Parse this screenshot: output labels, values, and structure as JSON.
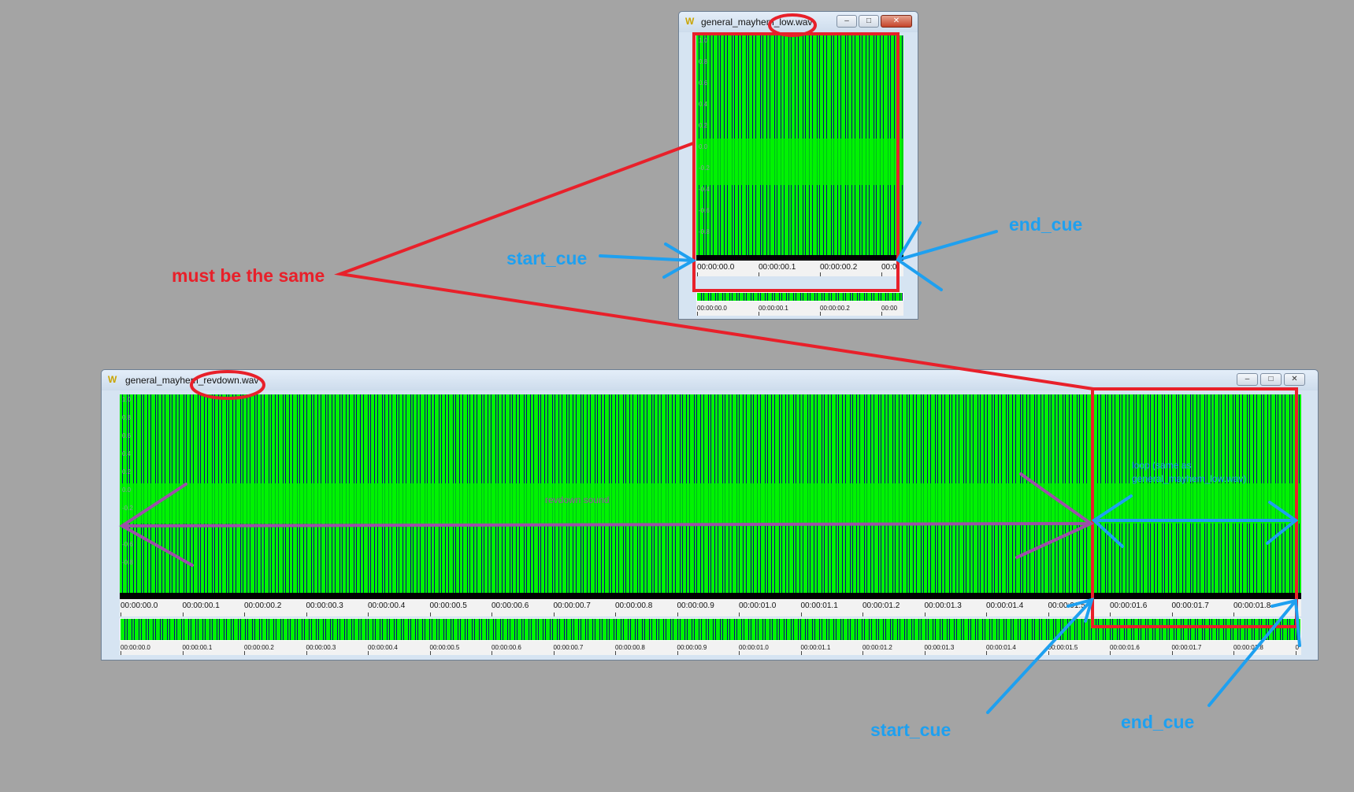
{
  "small_window": {
    "title": "general_mayhem_low.wav",
    "icon": "W",
    "controls": [
      "minimize",
      "restore",
      "close"
    ],
    "y_ticks": [
      "1.0",
      "0.8",
      "0.6",
      "0.4",
      "0.2",
      "0.0",
      "-0.2",
      "-0.4",
      "-0.6",
      "-0.8"
    ],
    "ruler_labels": [
      "00:00:00.0",
      "00:00:00.1",
      "00:00:00.2",
      "00:0"
    ],
    "overview_labels": [
      "00:00:00.0",
      "00:00:00.1",
      "00:00:00.2",
      "00:00"
    ]
  },
  "large_window": {
    "title": "general_mayhem_revdown.wav",
    "icon": "W",
    "controls": [
      "minimize",
      "restore",
      "close"
    ],
    "y_ticks": [
      "1.0",
      "0.8",
      "0.6",
      "0.4",
      "0.2",
      "0.0",
      "-0.2",
      "-0.4",
      "-0.6",
      "-0.8"
    ],
    "ruler_labels": [
      "00:00:00.0",
      "00:00:00.1",
      "00:00:00.2",
      "00:00:00.3",
      "00:00:00.4",
      "00:00:00.5",
      "00:00:00.6",
      "00:00:00.7",
      "00:00:00.8",
      "00:00:00.9",
      "00:00:01.0",
      "00:00:01.1",
      "00:00:01.2",
      "00:00:01.3",
      "00:00:01.4",
      "00:00:01.5",
      "00:00:01.6",
      "00:00:01.7",
      "00:00:01.8"
    ],
    "overview_labels": [
      "00:00:00.0",
      "00:00:00.1",
      "00:00:00.2",
      "00:00:00.3",
      "00:00:00.4",
      "00:00:00.5",
      "00:00:00.6",
      "00:00:00.7",
      "00:00:00.8",
      "00:00:00.9",
      "00:00:01.0",
      "00:00:01.1",
      "00:00:01.2",
      "00:00:01.3",
      "00:00:01.4",
      "00:00:01.5",
      "00:00:01.6",
      "00:00:01.7",
      "00:00:01.8",
      "0"
    ]
  },
  "annotations": {
    "must_be_same": "must be the same",
    "start_cue_top": "start_cue",
    "end_cue_top": "end_cue",
    "start_cue_bottom": "start_cue",
    "end_cue_bottom": "end_cue",
    "revdown_sound": "revdown sound",
    "loop_line1": "loop (same as",
    "loop_line2": "general_mayhem_low.wav)"
  },
  "colors": {
    "background": "#a4a4a4",
    "waveform": "#00f400",
    "waveform_bg": "#0a0e7a",
    "red_annotation": "#e8202a",
    "blue_annotation": "#1ea0f0",
    "purple_annotation": "#9c4fa8"
  }
}
